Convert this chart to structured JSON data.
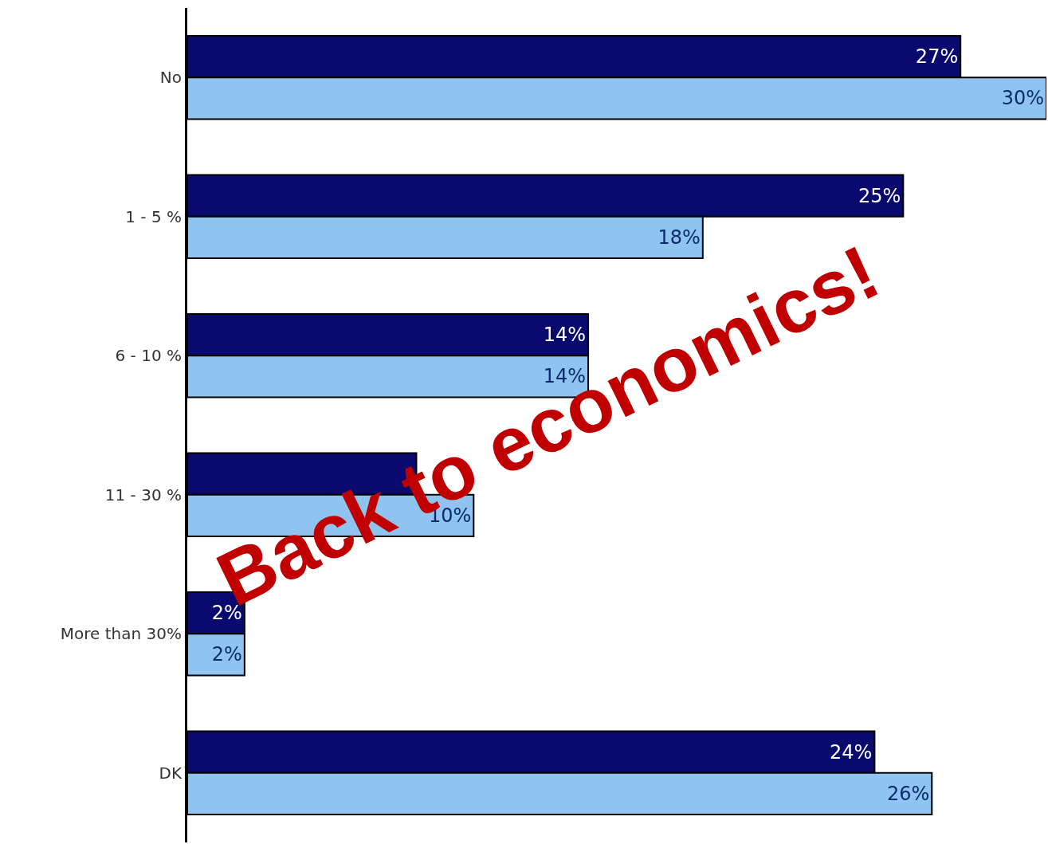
{
  "chart_data": {
    "type": "bar",
    "orientation": "horizontal",
    "categories": [
      "No",
      "1 - 5 %",
      "6 - 10 %",
      "11 - 30 %",
      "More than 30%",
      "DK"
    ],
    "series": [
      {
        "color": "#0a0a6e",
        "values": [
          27,
          25,
          14,
          8,
          2,
          24
        ],
        "value_labels": [
          "27%",
          "25%",
          "14%",
          null,
          "2%",
          "24%"
        ]
      },
      {
        "color": "#8fc4f0",
        "values": [
          30,
          18,
          14,
          10,
          2,
          26
        ],
        "value_labels": [
          "30%",
          "18%",
          "14%",
          "10%",
          "2%",
          "26%"
        ]
      }
    ],
    "annotations": [
      "Back to economics!"
    ],
    "legend": false,
    "tick_labels": "y"
  }
}
